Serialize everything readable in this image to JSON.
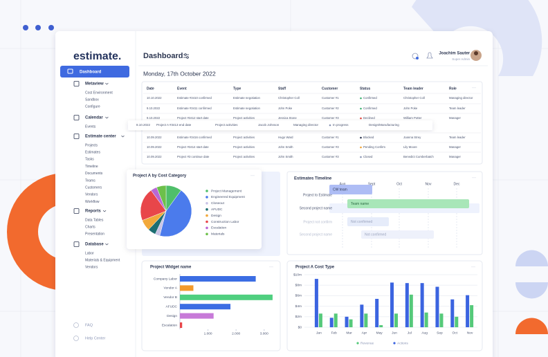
{
  "sidebar": {
    "logo": "estimate.",
    "active": "Dashboard",
    "sections": [
      {
        "title": "Metaview",
        "items": [
          "Cost Environment",
          "Sandbox",
          "Configure"
        ]
      },
      {
        "title": "Calendar",
        "items": [
          "Events"
        ]
      },
      {
        "title": "Estimate center",
        "items": [
          "Projects",
          "Estimates",
          "Tasks",
          "Timeline",
          "Documents",
          "Teams",
          "Customers",
          "Vendors",
          "Workflow"
        ]
      },
      {
        "title": "Reports",
        "items": [
          "Data Tables",
          "Charts",
          "Presentation"
        ]
      },
      {
        "title": "Database",
        "items": [
          "Labor",
          "Materials & Equipment",
          "Vendors"
        ]
      }
    ],
    "footer": [
      "FAQ",
      "Help Center"
    ]
  },
  "header": {
    "title": "Dashboard",
    "user_name": "Joachim Sauter",
    "user_role": "Super Admin",
    "date": "Monday, 17th October 2022"
  },
  "table": {
    "columns": [
      "Date",
      "Event",
      "Type",
      "Staff",
      "Customer",
      "Status",
      "Team leader",
      "Role"
    ],
    "rows": [
      [
        "10.10.2022",
        "Estimate #3410 confirmed",
        "Estimate negotiation",
        "Christopher Coll",
        "Customer #1",
        "Confirmed",
        "Christopher Coll",
        "Managing director"
      ],
      [
        "9.10.2022",
        "Estimate #3411 confirmed",
        "Estimate negotiation",
        "John Poke",
        "Customer #2",
        "Confirmed",
        "John Poke",
        "Team leader"
      ],
      [
        "9.10.2022",
        "Project #3412 start date",
        "Project activities",
        "Jessica Stone",
        "Customer #3",
        "Declined",
        "William Potter",
        "Manager"
      ],
      [
        "10.09.2022",
        "Estimate #3416 confirmed",
        "Project activities",
        "Hugo Ward",
        "Customer #1",
        "Blocked",
        "Joanna Strey",
        "Team leader"
      ],
      [
        "10.09.2022",
        "Project #3414 start date",
        "Project activities",
        "John Smith",
        "Customer #3",
        "Pending Confirm",
        "Lily Moore",
        "Manager"
      ],
      [
        "10.09.2022",
        "Project #3 continue date",
        "Project activities",
        "John Smith",
        "Customer #3",
        "Closed",
        "Benedict Cumberbatch",
        "Manager"
      ]
    ],
    "status_colors": [
      "#3cb371",
      "#3cb371",
      "#e0443c",
      "#2b3550",
      "#f0a030",
      "#8a95b5"
    ],
    "highlight_row": [
      "8.10.2022",
      "Project A #3413 end date",
      "Project activities",
      "Jacob Johnson",
      "Managing director",
      "In progress",
      "Design/Manufacturing"
    ],
    "highlight_status_color": "#8a95b5"
  },
  "timeline": {
    "title": "Estimates Timeline",
    "months": [
      "Aug",
      "Sept",
      "Oct",
      "Nov",
      "Dec"
    ],
    "rows": [
      {
        "label": "Project to Estimate",
        "bar": "CW team"
      },
      {
        "label": "Second project name",
        "bar": "Team name"
      },
      {
        "label": "Project not confirm",
        "bar": "Not confirmed"
      },
      {
        "label": "Second project name",
        "bar": "Not confirmed"
      }
    ]
  },
  "chart_data": [
    {
      "type": "pie",
      "title": "Project A by Cost Category",
      "categories": [
        "Project Management",
        "Engineered Equipment",
        "Closeout",
        "AFUDC",
        "Design",
        "Construction Labor",
        "Escalation",
        "Materials"
      ],
      "values": [
        10,
        44,
        3,
        5,
        7,
        21,
        4,
        6
      ],
      "colors": [
        "#4fbf6a",
        "#4b7bec",
        "#c9c3e6",
        "#1d6e72",
        "#f2a93b",
        "#e8464a",
        "#b967d6",
        "#6cc04a"
      ]
    },
    {
      "type": "bar",
      "orientation": "horizontal",
      "title": "Project Widget name",
      "categories": [
        "Company Labor",
        "Vendor A",
        "Vendor B",
        "AFUDC",
        "Design",
        "Escalation"
      ],
      "values": [
        2700,
        480,
        3300,
        1800,
        1200,
        80
      ],
      "colors": [
        "#3b6de3",
        "#f39a2b",
        "#4fcf7f",
        "#3b6de3",
        "#c77ad8",
        "#e8464a"
      ],
      "xlim": [
        0,
        3400
      ],
      "xticks": [
        {
          "value": 1000,
          "label": "1.000"
        },
        {
          "value": 2000,
          "label": "2.000"
        },
        {
          "value": 3000,
          "label": "3.000"
        }
      ]
    },
    {
      "type": "bar",
      "orientation": "vertical",
      "title": "Project A Cost Type",
      "categories": [
        "Jan",
        "Feb",
        "Mar",
        "Apr",
        "May",
        "Jun",
        "Jul",
        "Aug",
        "Sep",
        "Oct",
        "Nov"
      ],
      "series": [
        {
          "name": "Revenue",
          "color": "#55c97a",
          "values": [
            2.6,
            2.6,
            1.5,
            2.6,
            0.4,
            2.6,
            6.2,
            2.8,
            2.6,
            2.0,
            4.2
          ]
        },
        {
          "name": "Actions",
          "color": "#3b64e0",
          "values": [
            9.2,
            1.8,
            2.0,
            4.3,
            5.4,
            8.5,
            8.4,
            8.4,
            7.7,
            5.3,
            6.1
          ]
        }
      ],
      "ylim": [
        0,
        10
      ],
      "yticks": [
        {
          "value": 0,
          "label": "$0"
        },
        {
          "value": 2,
          "label": "$2m"
        },
        {
          "value": 4,
          "label": "$4m"
        },
        {
          "value": 6,
          "label": "$6m"
        },
        {
          "value": 8,
          "label": "$8m"
        },
        {
          "value": 10,
          "label": "$10m"
        }
      ],
      "grid": true
    }
  ]
}
